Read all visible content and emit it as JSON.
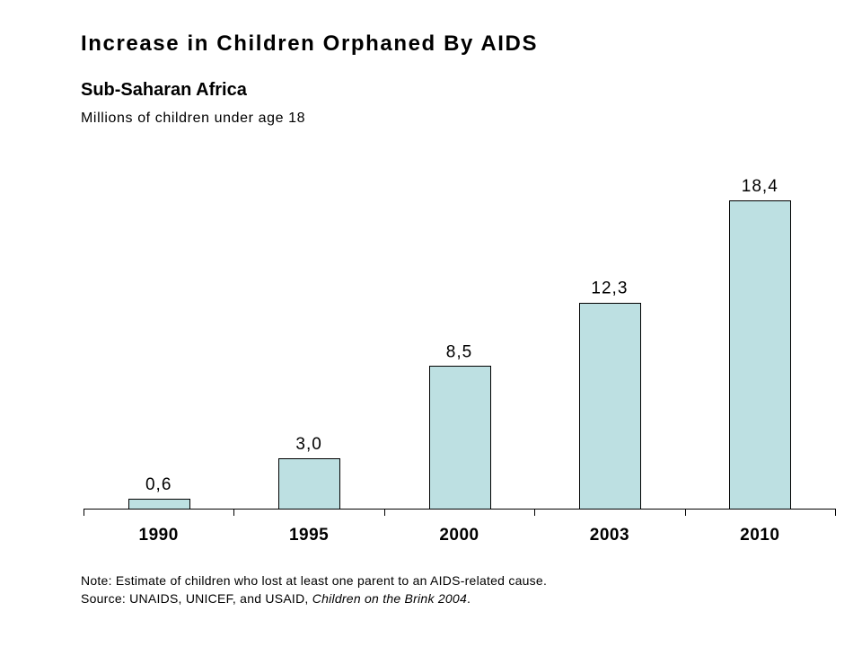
{
  "chart_data": {
    "type": "bar",
    "title": "Increase in Children Orphaned By AIDS",
    "subtitle": "Sub-Saharan Africa",
    "ylabel": "Millions of children under age 18",
    "categories": [
      "1990",
      "1995",
      "2000",
      "2003",
      "2010"
    ],
    "values": [
      0.6,
      3.0,
      8.5,
      12.3,
      18.4
    ],
    "data_labels": [
      "0,6",
      "3,0",
      "8,5",
      "12,3",
      "18,4"
    ],
    "ylim": [
      0,
      20
    ],
    "grid": false,
    "legend": false,
    "colors": {
      "bar_fill": "#bde0e2",
      "bar_stroke": "#000000",
      "axis": "#000000"
    }
  },
  "footer": {
    "note": "Note: Estimate of children who lost at least one parent to an AIDS-related cause.",
    "source_prefix": "Source: UNAIDS, UNICEF, and USAID, ",
    "source_title": "Children on the Brink 2004",
    "source_suffix": "."
  }
}
